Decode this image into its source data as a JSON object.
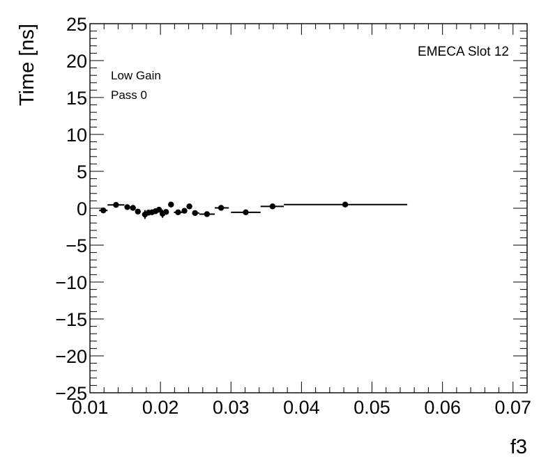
{
  "chart_data": {
    "type": "scatter",
    "xlabel": "f3",
    "ylabel": "Time [ns]",
    "xlim": [
      0.01,
      0.072
    ],
    "ylim": [
      -25,
      25
    ],
    "x_ticks": [
      "0.01",
      "0.02",
      "0.03",
      "0.04",
      "0.05",
      "0.06",
      "0.07"
    ],
    "y_ticks": [
      "25",
      "20",
      "15",
      "10",
      "5",
      "0",
      "−5",
      "−10",
      "−15",
      "−20",
      "−25"
    ],
    "grid": false,
    "annotations": {
      "gain": "Low Gain",
      "pass": "Pass 0",
      "slot": "EMECA Slot 12"
    },
    "series": [
      {
        "points": [
          {
            "x": 0.0119,
            "xlo": 0.0113,
            "xhi": 0.0125,
            "y": -0.3,
            "yerr": 0.25
          },
          {
            "x": 0.0137,
            "xlo": 0.0125,
            "xhi": 0.0149,
            "y": 0.45,
            "yerr": 0.2
          },
          {
            "x": 0.0153,
            "xlo": 0.0149,
            "xhi": 0.0157,
            "y": 0.15,
            "yerr": 0.2
          },
          {
            "x": 0.0161,
            "xlo": 0.0157,
            "xhi": 0.0165,
            "y": 0.05,
            "yerr": 0.2
          },
          {
            "x": 0.0168,
            "xlo": 0.0165,
            "xhi": 0.0171,
            "y": -0.45,
            "yerr": 0.25
          },
          {
            "x": 0.0178,
            "xlo": 0.0174,
            "xhi": 0.0181,
            "y": -0.85,
            "yerr": 0.6
          },
          {
            "x": 0.0183,
            "xlo": 0.0181,
            "xhi": 0.0185,
            "y": -0.6,
            "yerr": 0.3
          },
          {
            "x": 0.0188,
            "xlo": 0.0185,
            "xhi": 0.0191,
            "y": -0.55,
            "yerr": 0.25
          },
          {
            "x": 0.0193,
            "xlo": 0.0191,
            "xhi": 0.0195,
            "y": -0.4,
            "yerr": 0.25
          },
          {
            "x": 0.0198,
            "xlo": 0.0195,
            "xhi": 0.0201,
            "y": -0.2,
            "yerr": 0.3
          },
          {
            "x": 0.0203,
            "xlo": 0.0201,
            "xhi": 0.0205,
            "y": -0.75,
            "yerr": 0.55
          },
          {
            "x": 0.0208,
            "xlo": 0.0205,
            "xhi": 0.0211,
            "y": -0.5,
            "yerr": 0.25
          },
          {
            "x": 0.0215,
            "xlo": 0.0211,
            "xhi": 0.0219,
            "y": 0.5,
            "yerr": 0.3
          },
          {
            "x": 0.0225,
            "xlo": 0.0219,
            "xhi": 0.0231,
            "y": -0.55,
            "yerr": 0.25
          },
          {
            "x": 0.0234,
            "xlo": 0.0231,
            "xhi": 0.0237,
            "y": -0.35,
            "yerr": 0.25
          },
          {
            "x": 0.0241,
            "xlo": 0.0237,
            "xhi": 0.0245,
            "y": 0.25,
            "yerr": 0.25
          },
          {
            "x": 0.0249,
            "xlo": 0.0245,
            "xhi": 0.0255,
            "y": -0.65,
            "yerr": 0.3
          },
          {
            "x": 0.0266,
            "xlo": 0.0255,
            "xhi": 0.0277,
            "y": -0.8,
            "yerr": 0.25
          },
          {
            "x": 0.0286,
            "xlo": 0.0277,
            "xhi": 0.0297,
            "y": 0.05,
            "yerr": 0.25
          },
          {
            "x": 0.0321,
            "xlo": 0.03,
            "xhi": 0.0342,
            "y": -0.55,
            "yerr": 0.2
          },
          {
            "x": 0.0359,
            "xlo": 0.0342,
            "xhi": 0.0375,
            "y": 0.25,
            "yerr": 0.2
          },
          {
            "x": 0.0462,
            "xlo": 0.0375,
            "xhi": 0.055,
            "y": 0.5,
            "yerr": 0.25
          }
        ]
      }
    ]
  }
}
